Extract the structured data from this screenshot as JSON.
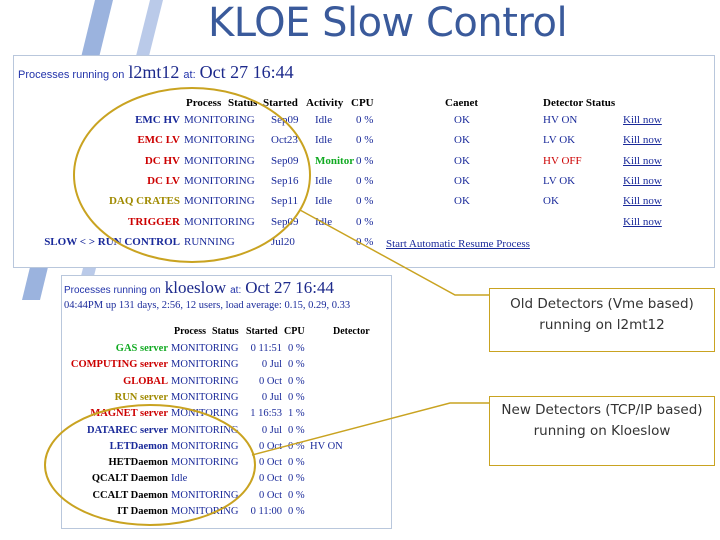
{
  "slide": {
    "title": "KLOE Slow Control"
  },
  "panel1": {
    "lead": "Processes running on",
    "host": "l2mt12",
    "at": "at:",
    "time": "Oct 27 16:44",
    "headers": [
      "Process",
      "Status",
      "Started",
      "Activity",
      "CPU",
      "Caenet",
      "Detector Status"
    ],
    "rows": [
      {
        "process": "EMC HV",
        "process_color": "#1a2a9a",
        "status": "MONITORING",
        "started": "Sep09",
        "activity": "Idle",
        "activity_color": "#1a2a9a",
        "cpu": "0 %",
        "caenet": "OK",
        "detector": "HV ON",
        "detector_color": "#1a2a9a",
        "kill": "Kill now"
      },
      {
        "process": "EMC LV",
        "process_color": "#cc0000",
        "status": "MONITORING",
        "started": "Oct23",
        "activity": "Idle",
        "activity_color": "#1a2a9a",
        "cpu": "0 %",
        "caenet": "OK",
        "detector": "LV OK",
        "detector_color": "#1a2a9a",
        "kill": "Kill now"
      },
      {
        "process": "DC HV",
        "process_color": "#cc0000",
        "status": "MONITORING",
        "started": "Sep09",
        "activity": "Monitor",
        "activity_color": "#11aa22",
        "cpu": "0 %",
        "caenet": "OK",
        "detector": "HV OFF",
        "detector_color": "#cc0000",
        "kill": "Kill now"
      },
      {
        "process": "DC LV",
        "process_color": "#cc0000",
        "status": "MONITORING",
        "started": "Sep16",
        "activity": "Idle",
        "activity_color": "#1a2a9a",
        "cpu": "0 %",
        "caenet": "OK",
        "detector": "LV OK",
        "detector_color": "#1a2a9a",
        "kill": "Kill now"
      },
      {
        "process": "DAQ CRATES",
        "process_color": "#a08a00",
        "status": "MONITORING",
        "started": "Sep11",
        "activity": "Idle",
        "activity_color": "#1a2a9a",
        "cpu": "0 %",
        "caenet": "OK",
        "detector": "OK",
        "detector_color": "#1a2a9a",
        "kill": "Kill now"
      },
      {
        "process": "TRIGGER",
        "process_color": "#cc0000",
        "status": "MONITORING",
        "started": "Sep09",
        "activity": "Idle",
        "activity_color": "#1a2a9a",
        "cpu": "0 %",
        "caenet": "",
        "detector": "",
        "detector_color": "#1a2a9a",
        "kill": "Kill now"
      },
      {
        "process": "SLOW < > RUN CONTROL",
        "process_color": "#1a2a9a",
        "status": "RUNNING",
        "started": "Jul20",
        "activity": "",
        "activity_color": "#1a2a9a",
        "cpu": "0 %",
        "caenet": "",
        "detector": "",
        "detector_color": "#1a2a9a",
        "kill": ""
      }
    ],
    "resume_link": "Start Automatic Resume Process"
  },
  "panel2": {
    "lead": "Processes running on",
    "host": "kloeslow",
    "at": "at:",
    "time": "Oct 27 16:44",
    "uptime": "04:44PM up 131 days, 2:56, 12 users, load average: 0.15, 0.29, 0.33",
    "headers": [
      "Process",
      "Status",
      "Started",
      "CPU",
      "Detector"
    ],
    "rows": [
      {
        "process": "GAS server",
        "process_color": "#11aa22",
        "status": "MONITORING",
        "started": "0 11:51",
        "cpu": "0 %",
        "detector": ""
      },
      {
        "process": "COMPUTING server",
        "process_color": "#cc0000",
        "status": "MONITORING",
        "started": "0 Jul",
        "cpu": "0 %",
        "detector": ""
      },
      {
        "process": "GLOBAL",
        "process_color": "#cc0000",
        "status": "MONITORING",
        "started": "0 Oct",
        "cpu": "0 %",
        "detector": ""
      },
      {
        "process": "RUN server",
        "process_color": "#a08a00",
        "status": "MONITORING",
        "started": "0 Jul",
        "cpu": "0 %",
        "detector": ""
      },
      {
        "process": "MAGNET server",
        "process_color": "#cc0000",
        "status": "MONITORING",
        "started": "1 16:53",
        "cpu": "1 %",
        "detector": ""
      },
      {
        "process": "DATAREC server",
        "process_color": "#1a2a9a",
        "status": "MONITORING",
        "started": "0 Jul",
        "cpu": "0 %",
        "detector": ""
      },
      {
        "process": "LETDaemon",
        "process_color": "#1a2a9a",
        "status": "MONITORING",
        "started": "0 Oct",
        "cpu": "0 %",
        "detector": "HV ON"
      },
      {
        "process": "HETDaemon",
        "process_color": "#000000",
        "status": "MONITORING",
        "started": "0 Oct",
        "cpu": "0 %",
        "detector": ""
      },
      {
        "process": "QCALT Daemon",
        "process_color": "#000000",
        "status": "Idle",
        "started": "0 Oct",
        "cpu": "0 %",
        "detector": ""
      },
      {
        "process": "CCALT Daemon",
        "process_color": "#000000",
        "status": "MONITORING",
        "started": "0 Oct",
        "cpu": "0 %",
        "detector": ""
      },
      {
        "process": "IT Daemon",
        "process_color": "#000000",
        "status": "MONITORING",
        "started": "0 11:00",
        "cpu": "0 %",
        "detector": ""
      }
    ]
  },
  "callouts": {
    "old": "Old Detectors (Vme based) running on l2mt12",
    "new": "New Detectors (TCP/IP based) running on Kloeslow"
  },
  "colors": {
    "title": "#3a5a9b",
    "accent_stripe": "#8aa6d8",
    "callout_border": "#c9a321",
    "ellipse": "#c9a321"
  }
}
